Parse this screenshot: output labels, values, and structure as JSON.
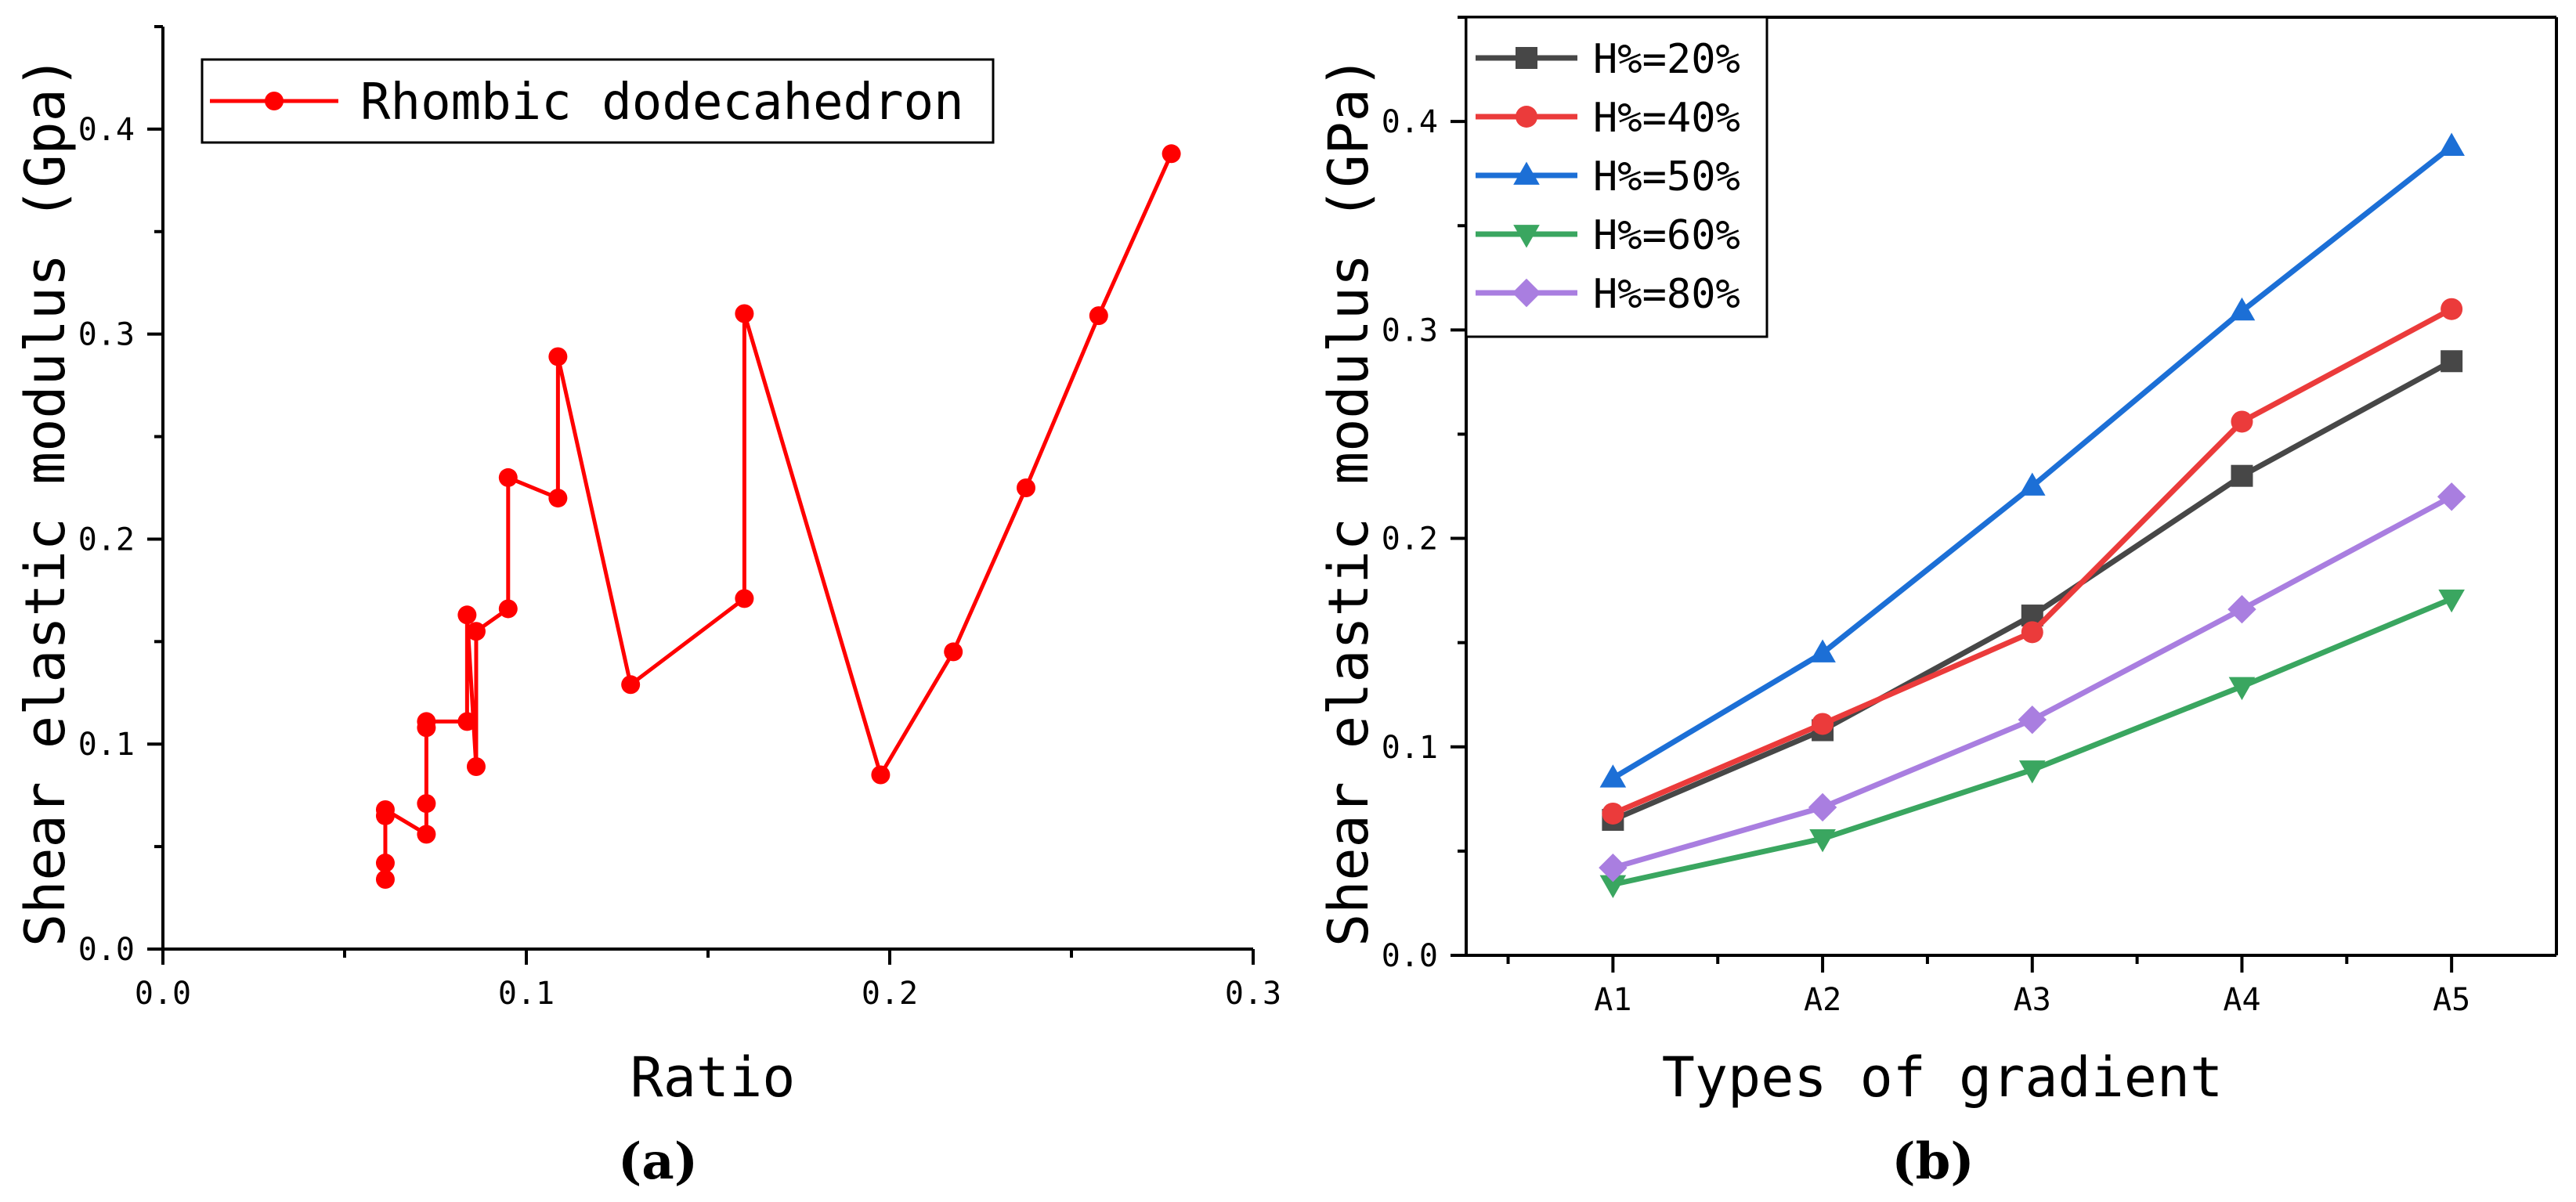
{
  "chart_data": [
    {
      "id": "a",
      "type": "line",
      "caption": "(a)",
      "xlabel": "Ratio",
      "ylabel": "Shear elastic modulus (Gpa)",
      "xlim": [
        0.0,
        0.3
      ],
      "ylim": [
        0.0,
        0.45
      ],
      "xticks": [
        0.0,
        0.1,
        0.2,
        0.3
      ],
      "xtick_labels": [
        "0.0",
        "0.1",
        "0.2",
        "0.3"
      ],
      "yticks": [
        0.0,
        0.1,
        0.2,
        0.3,
        0.4
      ],
      "ytick_labels": [
        "0.0",
        "0.1",
        "0.2",
        "0.3",
        "0.4"
      ],
      "legend_position": "top-left",
      "series": [
        {
          "name": "Rhombic dodecahedron",
          "color": "#ff0000",
          "marker": "circle",
          "x": [
            0.0612,
            0.0612,
            0.0612,
            0.0612,
            0.0725,
            0.0725,
            0.0725,
            0.0725,
            0.0837,
            0.0837,
            0.0862,
            0.0862,
            0.095,
            0.095,
            0.1087,
            0.1087,
            0.1287,
            0.16,
            0.16,
            0.1975,
            0.2175,
            0.2375,
            0.2575,
            0.2775
          ],
          "y": [
            0.034,
            0.042,
            0.065,
            0.068,
            0.056,
            0.071,
            0.108,
            0.111,
            0.111,
            0.163,
            0.089,
            0.155,
            0.166,
            0.23,
            0.22,
            0.289,
            0.129,
            0.171,
            0.31,
            0.085,
            0.145,
            0.225,
            0.309,
            0.388
          ]
        }
      ]
    },
    {
      "id": "b",
      "type": "line",
      "caption": "(b)",
      "xlabel": "Types of gradient",
      "ylabel": "Shear elastic modulus (GPa)",
      "categories": [
        "A1",
        "A2",
        "A3",
        "A4",
        "A5"
      ],
      "xlim": [
        0.3,
        5.5
      ],
      "ylim": [
        0.0,
        0.45
      ],
      "yticks": [
        0.0,
        0.1,
        0.2,
        0.3,
        0.4
      ],
      "ytick_labels": [
        "0.0",
        "0.1",
        "0.2",
        "0.3",
        "0.4"
      ],
      "legend_position": "top-left",
      "series": [
        {
          "name": "H%=20%",
          "color": "#474747",
          "marker": "square",
          "values": [
            0.065,
            0.108,
            0.163,
            0.23,
            0.285
          ]
        },
        {
          "name": "H%=40%",
          "color": "#eb3b3b",
          "marker": "circle",
          "values": [
            0.068,
            0.111,
            0.155,
            0.256,
            0.31
          ]
        },
        {
          "name": "H%=50%",
          "color": "#1c6fd6",
          "marker": "triangle-up",
          "values": [
            0.085,
            0.145,
            0.225,
            0.309,
            0.388
          ]
        },
        {
          "name": "H%=60%",
          "color": "#3aa660",
          "marker": "triangle-down",
          "values": [
            0.034,
            0.056,
            0.089,
            0.129,
            0.171
          ]
        },
        {
          "name": "H%=80%",
          "color": "#a97ee0",
          "marker": "diamond",
          "values": [
            0.042,
            0.071,
            0.113,
            0.166,
            0.22
          ]
        }
      ]
    }
  ]
}
